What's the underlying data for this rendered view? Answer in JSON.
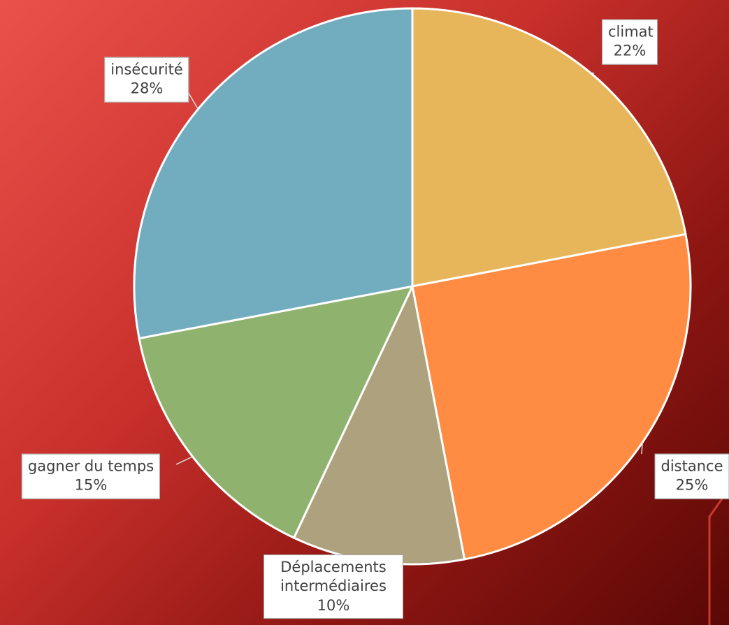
{
  "chart_data": {
    "type": "pie",
    "categories": [
      "climat",
      "distance",
      "Déplacements intermédiaires",
      "gagner du temps",
      "insécurité"
    ],
    "values": [
      22,
      25,
      10,
      15,
      28
    ],
    "value_labels": [
      "22%",
      "25%",
      "10%",
      "15%",
      "28%"
    ],
    "colors": [
      "#e8b65a",
      "#ff8c42",
      "#aea27e",
      "#8fb36e",
      "#72acbf"
    ]
  }
}
